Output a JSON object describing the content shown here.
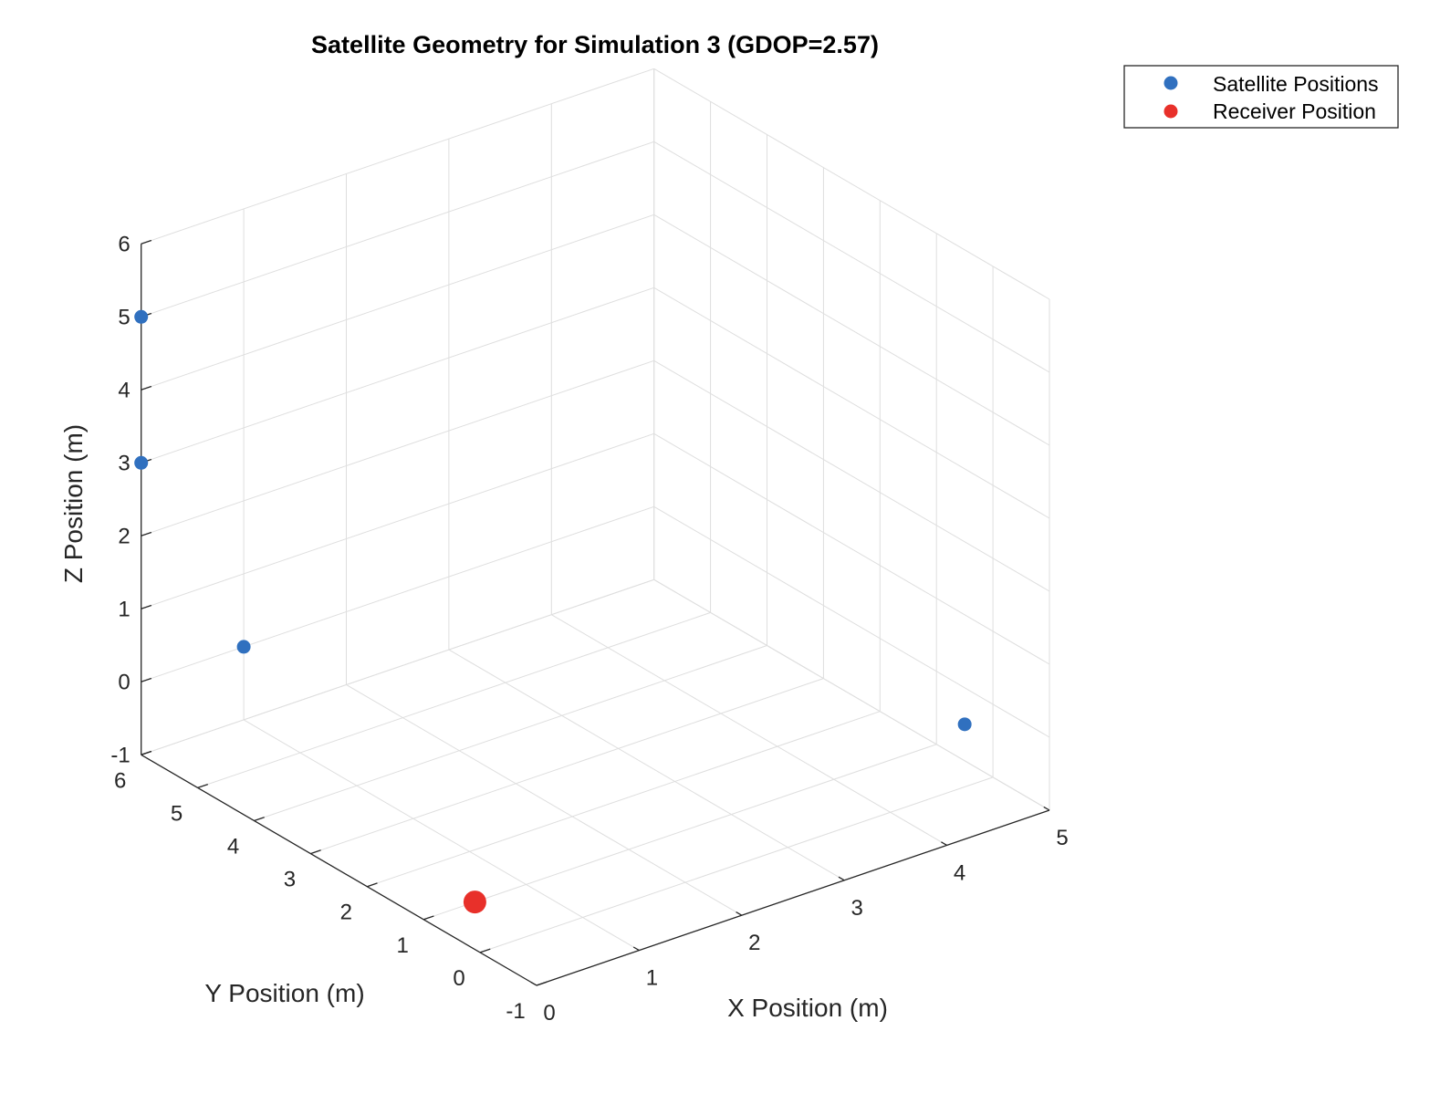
{
  "chart_data": {
    "type": "scatter3d",
    "title": "Satellite Geometry for Simulation 3 (GDOP=2.57)",
    "xlabel": "X Position (m)",
    "ylabel": "Y Position (m)",
    "zlabel": "Z Position (m)",
    "xlim": [
      0,
      5
    ],
    "ylim": [
      -1,
      6
    ],
    "zlim": [
      -1,
      6
    ],
    "xticks": [
      "0",
      "1",
      "2",
      "3",
      "4",
      "5"
    ],
    "yticks": [
      "-1",
      "0",
      "1",
      "2",
      "3",
      "4",
      "5",
      "6"
    ],
    "zticks": [
      "-1",
      "0",
      "1",
      "2",
      "3",
      "4",
      "5",
      "6"
    ],
    "grid": true,
    "legend_position": "top-right outside",
    "series": [
      {
        "name": "Satellite Positions",
        "color": "#3070BF",
        "points": [
          {
            "x": 0.0,
            "y": 6.0,
            "z": 5.0
          },
          {
            "x": 0.0,
            "y": 6.0,
            "z": 3.0
          },
          {
            "x": 1.0,
            "y": 6.0,
            "z": 0.0
          },
          {
            "x": 5.0,
            "y": 0.5,
            "z": -0.5
          }
        ]
      },
      {
        "name": "Receiver Position",
        "color": "#E8302A",
        "points": [
          {
            "x": 0.5,
            "y": 1.0,
            "z": -1.0
          }
        ]
      }
    ]
  }
}
